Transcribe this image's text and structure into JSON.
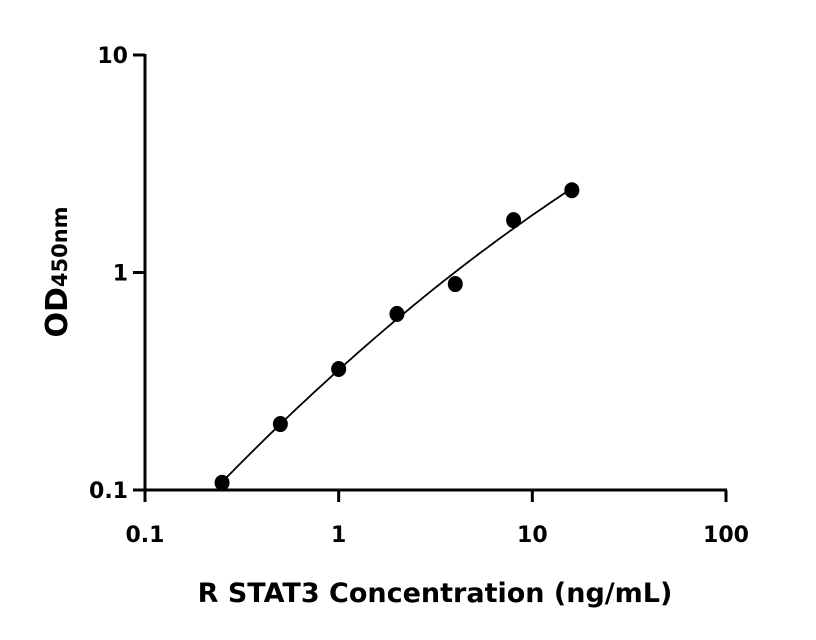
{
  "chart_data": {
    "type": "scatter",
    "title": "",
    "xlabel": "R STAT3 Concentration (ng/mL)",
    "ylabel": "OD",
    "ylabel_subscript": "450nm",
    "xscale": "log",
    "yscale": "log",
    "xlim": [
      0.1,
      100
    ],
    "ylim": [
      0.1,
      10
    ],
    "x_ticks": [
      "0.1",
      "1",
      "10",
      "100"
    ],
    "y_ticks": [
      "0.1",
      "1",
      "10"
    ],
    "grid": false,
    "legend": "none",
    "fit_curve": true,
    "color": "#000000",
    "x": [
      0.25,
      0.5,
      1,
      2,
      4,
      8,
      16
    ],
    "y": [
      0.108,
      0.201,
      0.36,
      0.645,
      0.885,
      1.74,
      2.39
    ]
  }
}
